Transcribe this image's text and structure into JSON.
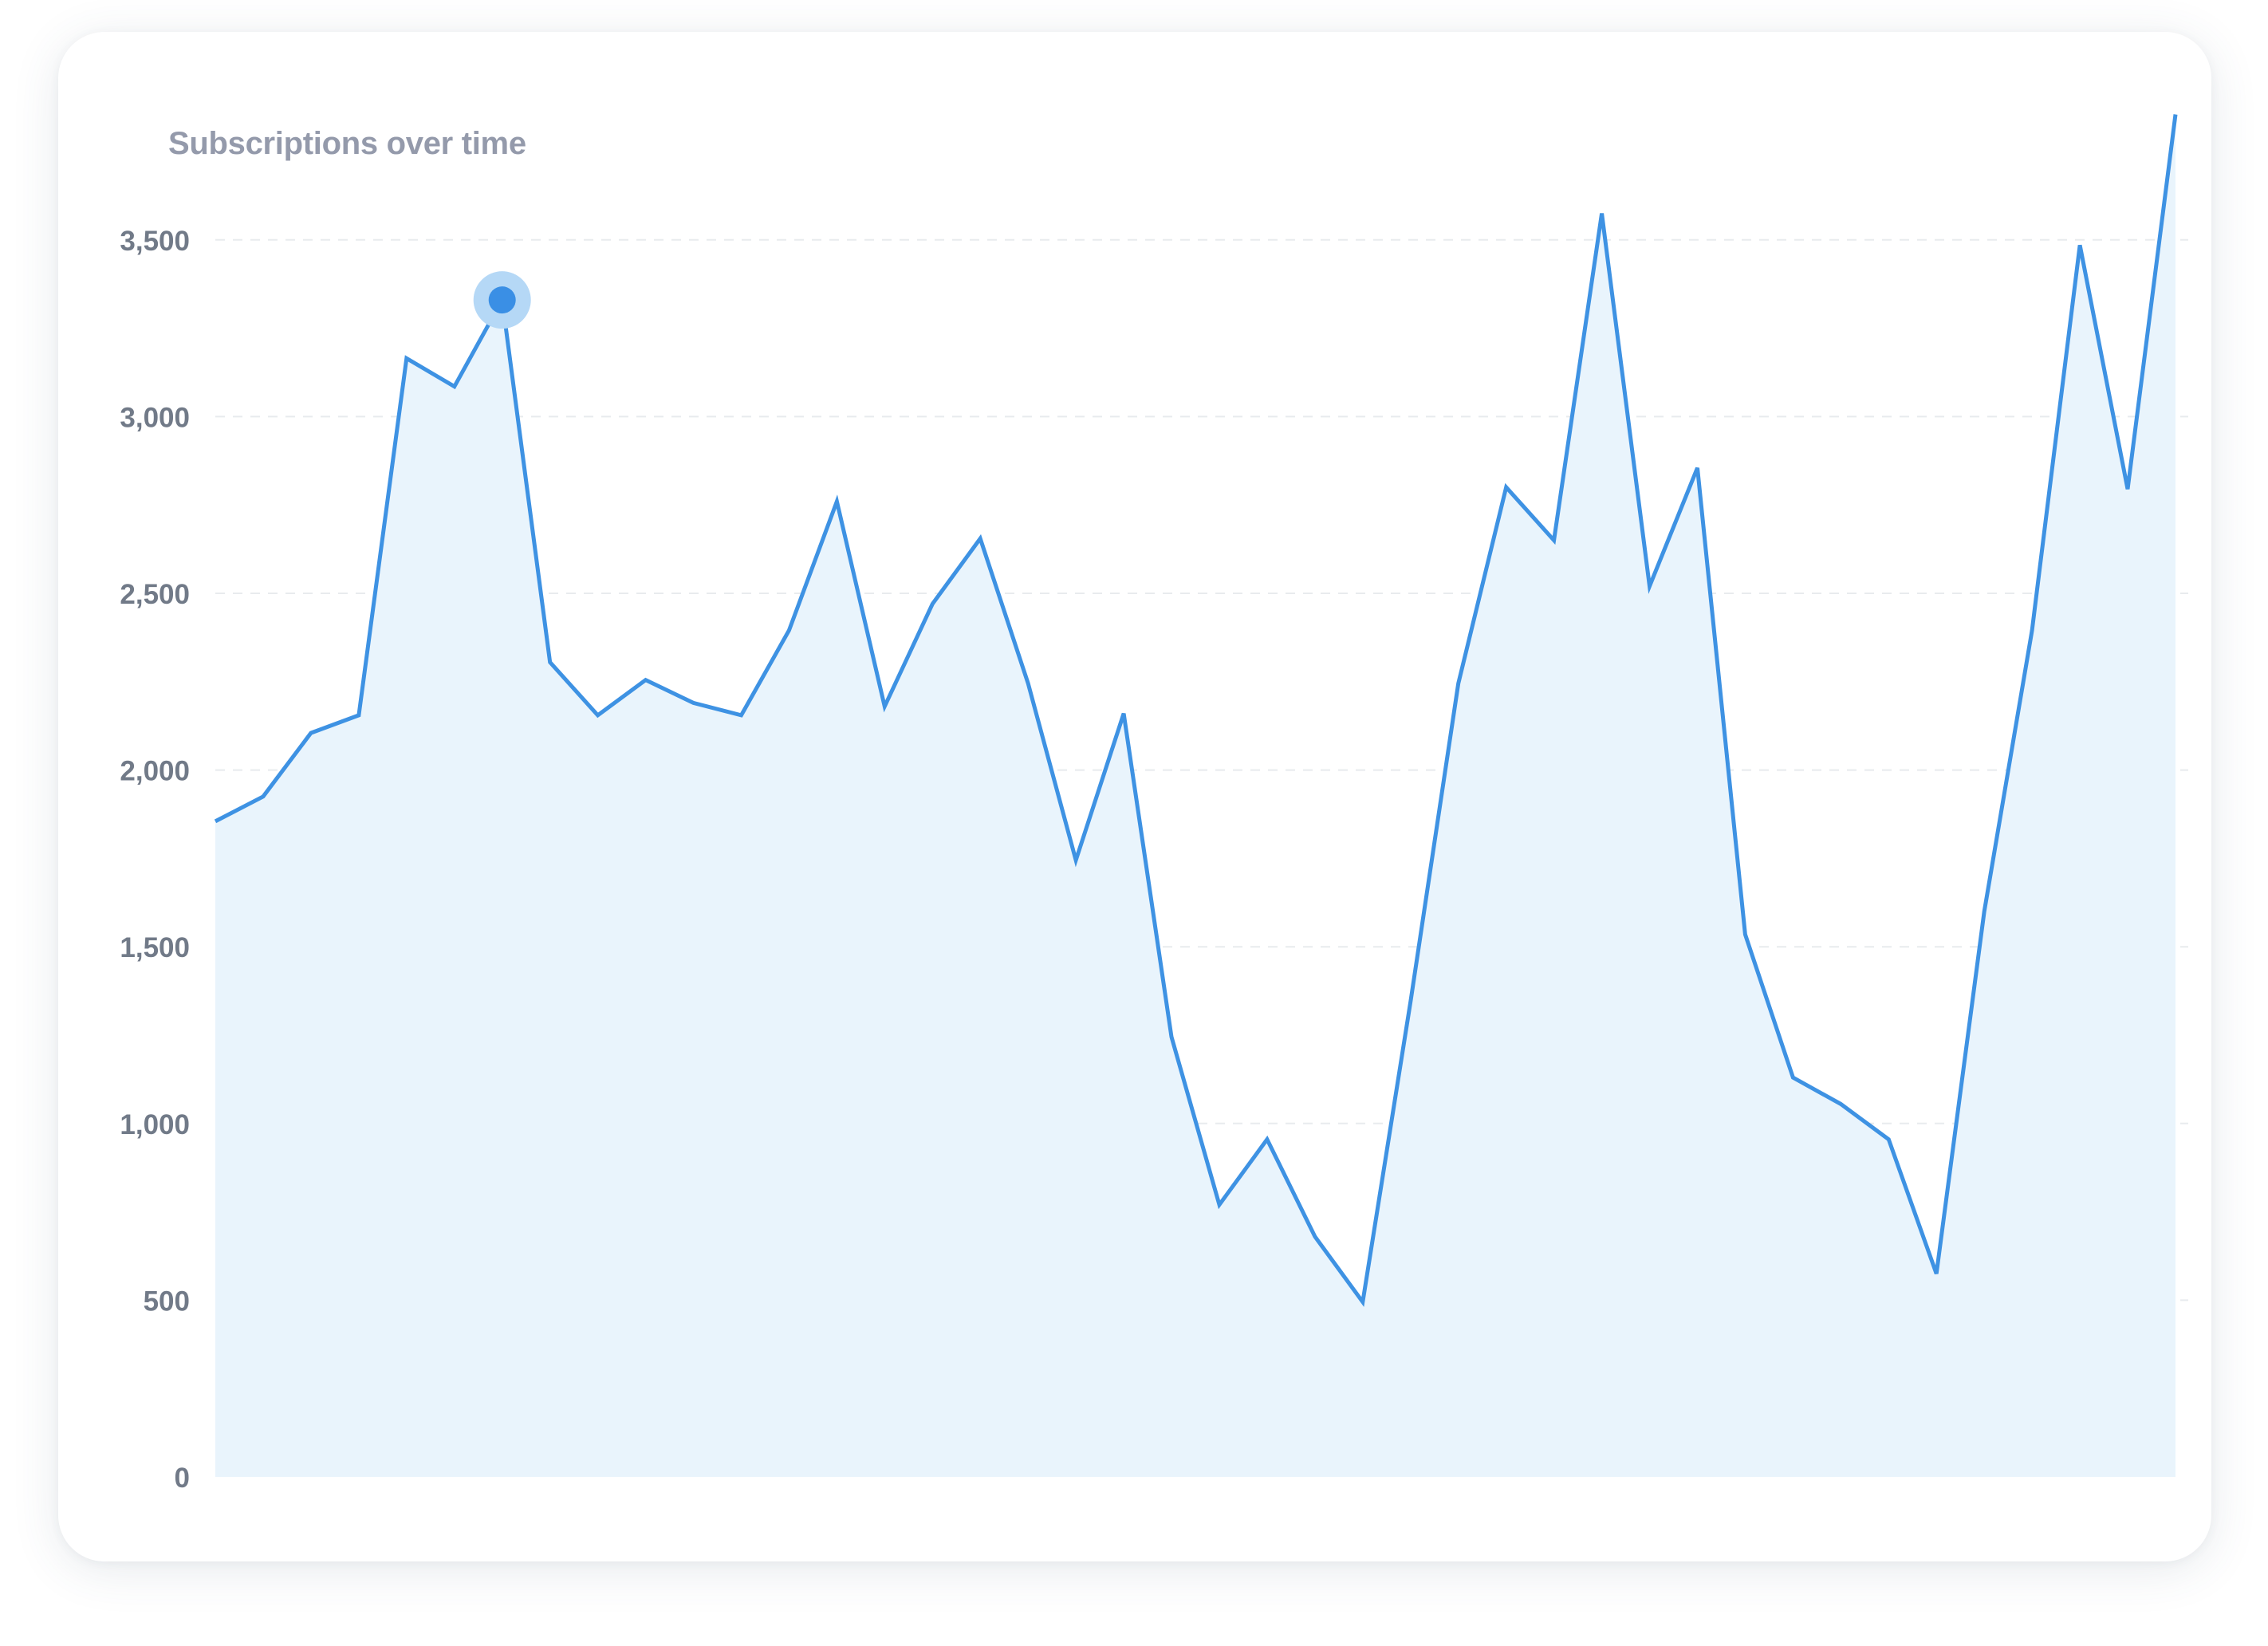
{
  "chart_data": {
    "type": "area",
    "title": "Subscriptions over time",
    "xlabel": "",
    "ylabel": "",
    "ylim": [
      0,
      3850
    ],
    "yticks": [
      0,
      500,
      1000,
      1500,
      2000,
      2500,
      3000,
      3500
    ],
    "ytick_labels": [
      "0",
      "500",
      "1,000",
      "1,500",
      "2,000",
      "2,500",
      "3,000",
      "3,500"
    ],
    "grid": true,
    "legend": "none",
    "highlighted_point_index": 6,
    "series": [
      {
        "values": [
          1855,
          1925,
          2105,
          2155,
          3165,
          3085,
          3330,
          2305,
          2155,
          2255,
          2190,
          2155,
          2395,
          2760,
          2180,
          2470,
          2655,
          2245,
          1745,
          2160,
          1245,
          770,
          955,
          680,
          495,
          1345,
          2245,
          2800,
          2650,
          3575,
          2520,
          2855,
          1535,
          1130,
          1055,
          955,
          575,
          1600,
          2395,
          3485,
          2795,
          3855
        ],
        "color": "#3e92e3",
        "fill": "#e9f4fc"
      }
    ]
  },
  "colors": {
    "line": "#3e92e3",
    "area": "#e9f4fc",
    "highlight_halo": "#b5d8f6",
    "highlight_dot": "#3a8fe5",
    "gridline": "#e8ebee",
    "axis_text": "#717a88",
    "title_text": "#949aab"
  }
}
